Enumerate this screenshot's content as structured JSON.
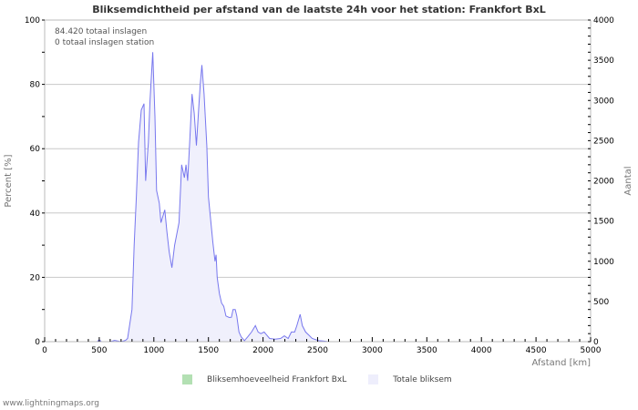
{
  "chart_data": {
    "type": "area",
    "title": "Bliksemdichtheid per afstand van de laatste 24h voor het station: Frankfort BxL",
    "xlabel": "Afstand   [km]",
    "ylabel": "Percent   [%]",
    "y2label": "Aantal",
    "xlim": [
      0,
      5000
    ],
    "ylim": [
      0,
      100
    ],
    "y2lim": [
      0,
      4000
    ],
    "x_ticks": [
      "0",
      "500",
      "1000",
      "1500",
      "2000",
      "2500",
      "3000",
      "3500",
      "4000",
      "4500",
      "5000"
    ],
    "y_ticks": [
      "0",
      "20",
      "40",
      "60",
      "80",
      "100"
    ],
    "y2_ticks": [
      "0",
      "500",
      "1000",
      "1500",
      "2000",
      "2500",
      "3000",
      "3500",
      "4000"
    ],
    "grid": true,
    "legend_position": "bottom",
    "annotations": [
      "84.420 totaal inslagen",
      "0 totaal inslagen station"
    ],
    "series": [
      {
        "name": "Bliksemhoeveelheid Frankfort BxL",
        "color": "#b3e0b3",
        "x": [],
        "values": []
      },
      {
        "name": "Totale bliksem",
        "color": "#7777ee",
        "fill": "#f0f0fc",
        "x": [
          0,
          480,
          500,
          520,
          600,
          640,
          700,
          740,
          760,
          800,
          820,
          840,
          860,
          885,
          910,
          925,
          950,
          965,
          990,
          1010,
          1025,
          1050,
          1065,
          1100,
          1120,
          1140,
          1165,
          1190,
          1230,
          1255,
          1280,
          1295,
          1310,
          1330,
          1350,
          1370,
          1390,
          1410,
          1425,
          1440,
          1460,
          1485,
          1500,
          1520,
          1540,
          1560,
          1570,
          1580,
          1600,
          1620,
          1640,
          1660,
          1690,
          1710,
          1725,
          1745,
          1760,
          1780,
          1800,
          1830,
          1860,
          1895,
          1930,
          1955,
          1980,
          2010,
          2035,
          2060,
          2110,
          2160,
          2195,
          2230,
          2260,
          2290,
          2310,
          2340,
          2360,
          2390,
          2420,
          2450,
          2510,
          2550,
          2600,
          5000
        ],
        "values": [
          0,
          0,
          0.6,
          0,
          0,
          0.4,
          0,
          0.4,
          1,
          10,
          30,
          45,
          62,
          72,
          74,
          50,
          62,
          75,
          90,
          70,
          47,
          43,
          37,
          41,
          34,
          28,
          23,
          30,
          37,
          55,
          51,
          55,
          50,
          63,
          77,
          71,
          61,
          72,
          80,
          86,
          77,
          61,
          45,
          38,
          31,
          25,
          27,
          20,
          15,
          12,
          11,
          8,
          7.5,
          7.6,
          10,
          10,
          8,
          3,
          1.5,
          0.3,
          1.5,
          3,
          5,
          3,
          2.5,
          3,
          2,
          1,
          0.8,
          1,
          1.8,
          1,
          3,
          3,
          5,
          8.5,
          5,
          3,
          2,
          1,
          0.3,
          0.2,
          0,
          0
        ]
      }
    ]
  },
  "legend": {
    "items": [
      {
        "label": "Bliksemhoeveelheid Frankfort BxL",
        "color": "#b3e0b3"
      },
      {
        "label": "Totale bliksem",
        "color": "#eeeefc"
      }
    ]
  },
  "footer": "www.lightningmaps.org"
}
